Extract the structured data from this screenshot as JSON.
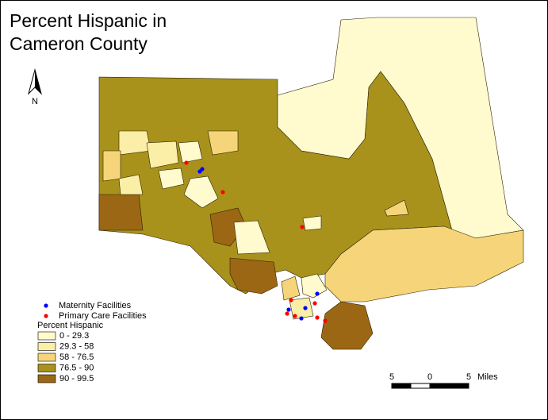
{
  "title": [
    "Percent Hispanic in",
    "Cameron County"
  ],
  "north_label": "N",
  "legend": {
    "facilities": [
      {
        "label": "Maternity Facilities",
        "color": "#0000ff"
      },
      {
        "label": "Primary Care Facilities",
        "color": "#ff0000"
      }
    ],
    "title": "Percent Hispanic",
    "classes": [
      {
        "label": "0 - 29.3",
        "color": "#fffbcf"
      },
      {
        "label": "29.3 - 58",
        "color": "#fbeea6"
      },
      {
        "label": "58 - 76.5",
        "color": "#f6d57a"
      },
      {
        "label": "76.5 - 90",
        "color": "#a8921c"
      },
      {
        "label": "90 - 99.5",
        "color": "#9c6714"
      }
    ]
  },
  "scale_bar": {
    "ticks": [
      "5",
      "0",
      "5"
    ],
    "unit": "Miles"
  }
}
